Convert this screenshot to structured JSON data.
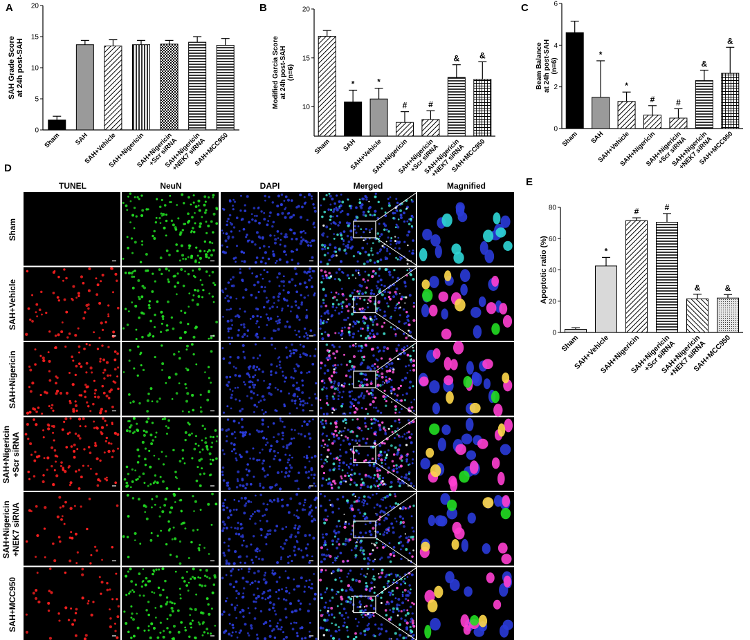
{
  "panel_letters": {
    "a": "A",
    "b": "B",
    "c": "C",
    "d": "D",
    "e": "E"
  },
  "chart_data": [
    {
      "panel": "A",
      "type": "bar",
      "ylabel": "SAH Grade Score\nat 24h post-SAH",
      "ylim": [
        0,
        20
      ],
      "yticks": [
        0,
        5,
        10,
        15,
        20
      ],
      "categories": [
        "Sham",
        "SAH",
        "SAH+Vehicle",
        "SAH+Nigericin",
        "SAH+Nigericin\n+Scr siRNA",
        "SAH+Nigericin\n+NEK7 siRNA",
        "SAH+MCC950"
      ],
      "values": [
        1.6,
        13.7,
        13.5,
        13.7,
        13.8,
        14.1,
        13.6
      ],
      "errors": [
        0.6,
        0.7,
        1.0,
        0.7,
        0.6,
        0.9,
        1.1
      ],
      "annotations": [
        "",
        "",
        "",
        "",
        "",
        "",
        ""
      ],
      "patterns": [
        "solid-black",
        "solid-gray",
        "diag-right",
        "vertical",
        "checker",
        "horizontal",
        "horizontal"
      ]
    },
    {
      "panel": "B",
      "type": "bar",
      "ylabel": "Modified Garcia Score\nat 24h post-SAH\n(n=6)",
      "ylim": [
        7,
        20
      ],
      "yticks": [
        10,
        15,
        20
      ],
      "categories": [
        "Sham",
        "SAH",
        "SAH+Vehicle",
        "SAH+Nigericin",
        "SAH+Nigericin\n+Scr siRNA",
        "SAH+Nigericin\n+NEK7 siRNA",
        "SAH+MCC950"
      ],
      "values": [
        17.2,
        10.5,
        10.8,
        8.4,
        8.7,
        13.0,
        12.8
      ],
      "errors": [
        0.6,
        1.2,
        1.1,
        1.1,
        0.9,
        1.3,
        1.8
      ],
      "annotations": [
        "",
        "*",
        "*",
        "#",
        "#",
        "&",
        "&"
      ],
      "patterns": [
        "diag-right",
        "solid-black",
        "solid-gray",
        "diag-right",
        "diag-right",
        "horizontal",
        "grid"
      ]
    },
    {
      "panel": "C",
      "type": "bar",
      "ylabel": "Beam Balance\nat 24h post-SAH\n(n=6)",
      "ylim": [
        0,
        6
      ],
      "yticks": [
        0,
        2,
        4,
        6
      ],
      "categories": [
        "Sham",
        "SAH",
        "SAH+Vehicle",
        "SAH+Nigericin",
        "SAH+Nigericin\n+Scr siRNA",
        "SAH+Nigericin\n+NEK7 siRNA",
        "SAH+MCC950"
      ],
      "values": [
        4.6,
        1.5,
        1.3,
        0.65,
        0.5,
        2.3,
        2.65
      ],
      "errors": [
        0.55,
        1.75,
        0.45,
        0.45,
        0.45,
        0.5,
        1.25
      ],
      "annotations": [
        "",
        "*",
        "*",
        "#",
        "#",
        "&",
        "&"
      ],
      "patterns": [
        "solid-black",
        "solid-gray",
        "diag-right",
        "diag-right",
        "diag-right",
        "horizontal",
        "grid"
      ]
    },
    {
      "panel": "E",
      "type": "bar",
      "ylabel": "Apoptotic ratio (%)",
      "ylim": [
        0,
        80
      ],
      "yticks": [
        0,
        20,
        40,
        60,
        80
      ],
      "categories": [
        "Sham",
        "SAH+Vehicle",
        "SAH+Nigericin",
        "SAH+Nigericin\n+Scr siRNA",
        "SAH+Nigericin\n+NEK7 siRNA",
        "SAH+MCC950"
      ],
      "values": [
        2,
        42.5,
        71.5,
        70.5,
        21.5,
        22
      ],
      "errors": [
        1.0,
        5.5,
        1.8,
        5.5,
        3.0,
        2.2
      ],
      "annotations": [
        "",
        "*",
        "#",
        "#",
        "&",
        "&"
      ],
      "patterns": [
        "solid-light",
        "solid-light",
        "diag-right",
        "horizontal",
        "diag-left",
        "dots"
      ]
    }
  ],
  "micrograph_panel": {
    "letter": "D",
    "columns": [
      "TUNEL",
      "NeuN",
      "DAPI",
      "Merged",
      "Magnified"
    ],
    "rows": [
      "Sham",
      "SAH+Vehicle",
      "SAH+Nigericin",
      "SAH+Nigericin\n+Scr siRNA",
      "SAH+Nigericin\n+NEK7 siRNA",
      "SAH+MCC950"
    ]
  },
  "colors": {
    "tunel": "#ff2020",
    "neun": "#22dd22",
    "dapi": "#2a3bd8",
    "bar_gray": "#9a9a9a",
    "bar_light": "#d9d9d9"
  }
}
